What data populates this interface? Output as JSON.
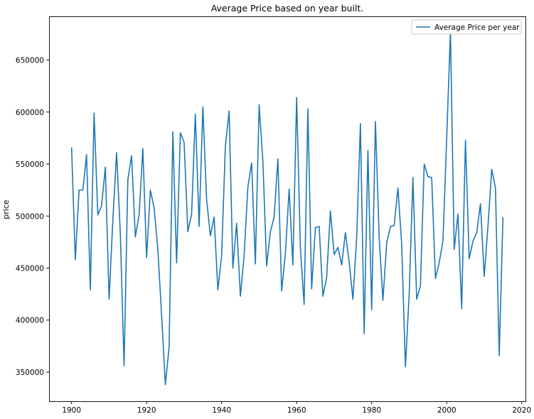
{
  "chart_data": {
    "type": "line",
    "title": "Average Price based on year built.",
    "xlabel": "",
    "ylabel": "price",
    "xlim": [
      1894,
      2021
    ],
    "ylim": [
      322000,
      692000
    ],
    "xticks": [
      1900,
      1920,
      1940,
      1960,
      1980,
      2000,
      2020
    ],
    "yticks": [
      350000,
      400000,
      450000,
      500000,
      550000,
      600000,
      650000
    ],
    "grid": false,
    "legend_position": "top-right",
    "series": [
      {
        "name": "Average Price per year",
        "color": "#1f77b4",
        "x": [
          1900,
          1901,
          1902,
          1903,
          1904,
          1905,
          1906,
          1907,
          1908,
          1909,
          1910,
          1911,
          1912,
          1913,
          1914,
          1915,
          1916,
          1917,
          1918,
          1919,
          1920,
          1921,
          1922,
          1923,
          1924,
          1925,
          1926,
          1927,
          1928,
          1929,
          1930,
          1931,
          1932,
          1933,
          1934,
          1935,
          1936,
          1937,
          1938,
          1939,
          1940,
          1941,
          1942,
          1943,
          1944,
          1945,
          1946,
          1947,
          1948,
          1949,
          1950,
          1951,
          1952,
          1953,
          1954,
          1955,
          1956,
          1957,
          1958,
          1959,
          1960,
          1961,
          1962,
          1963,
          1964,
          1965,
          1966,
          1967,
          1968,
          1969,
          1970,
          1971,
          1972,
          1973,
          1974,
          1975,
          1976,
          1977,
          1978,
          1979,
          1980,
          1981,
          1982,
          1983,
          1984,
          1985,
          1986,
          1987,
          1988,
          1989,
          1990,
          1991,
          1992,
          1993,
          1994,
          1995,
          1996,
          1997,
          1998,
          1999,
          2000,
          2001,
          2002,
          2003,
          2004,
          2005,
          2006,
          2007,
          2008,
          2009,
          2010,
          2011,
          2012,
          2013,
          2014,
          2015
        ],
        "values": [
          566000,
          458000,
          525000,
          525000,
          559000,
          429000,
          599000,
          501000,
          510000,
          547000,
          420000,
          496000,
          561000,
          483000,
          356000,
          535000,
          558000,
          480000,
          501000,
          565000,
          460000,
          525000,
          508000,
          468000,
          405000,
          338000,
          374000,
          581000,
          455000,
          580000,
          571000,
          485000,
          502000,
          598000,
          490000,
          605000,
          516000,
          481000,
          499000,
          429000,
          462000,
          567000,
          601000,
          450000,
          493000,
          423000,
          462000,
          528000,
          551000,
          454000,
          607000,
          553000,
          452000,
          485000,
          499000,
          555000,
          428000,
          464000,
          526000,
          453000,
          614000,
          469000,
          415000,
          603000,
          430000,
          489000,
          490000,
          423000,
          441000,
          505000,
          463000,
          470000,
          453000,
          484000,
          456000,
          420000,
          479000,
          589000,
          387000,
          563000,
          410000,
          591000,
          480000,
          419000,
          474000,
          490000,
          491000,
          527000,
          473000,
          355000,
          425000,
          537000,
          420000,
          433000,
          550000,
          538000,
          537000,
          440000,
          455000,
          476000,
          575000,
          678000,
          468000,
          502000,
          411000,
          573000,
          459000,
          476000,
          484000,
          512000,
          442000,
          490000,
          545000,
          527000,
          366000,
          499000
        ]
      }
    ]
  }
}
